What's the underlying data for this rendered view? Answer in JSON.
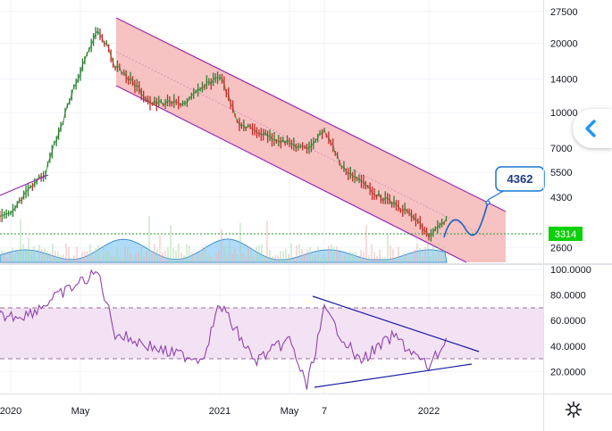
{
  "chart_data": [
    {
      "type": "line",
      "subtype": "candlestick-with-volume",
      "yscale": "log",
      "y_ticks": [
        "27500",
        "20000",
        "14000",
        "10000",
        "7000",
        "5500",
        "4300",
        "2600"
      ],
      "x_ticks": [
        "2020",
        "May",
        "2021",
        "May",
        "7",
        "2022"
      ],
      "last_price_label": "3314",
      "projection_label": "4362",
      "series": [
        {
          "values": [
            {
              "x": "2019-10",
              "y": 3200
            },
            {
              "x": "2020-01",
              "y": 3600
            },
            {
              "x": "2020-03",
              "y": 5500
            },
            {
              "x": "2020-04",
              "y": 9000
            },
            {
              "x": "2020-05",
              "y": 15000
            },
            {
              "x": "2020-06",
              "y": 23000
            },
            {
              "x": "2020-07",
              "y": 16000
            },
            {
              "x": "2020-09",
              "y": 11000
            },
            {
              "x": "2020-11",
              "y": 11000
            },
            {
              "x": "2021-01",
              "y": 14500
            },
            {
              "x": "2021-02",
              "y": 9000
            },
            {
              "x": "2021-04",
              "y": 7800
            },
            {
              "x": "2021-06",
              "y": 6900
            },
            {
              "x": "2021-07",
              "y": 8400
            },
            {
              "x": "2021-08",
              "y": 5800
            },
            {
              "x": "2021-10",
              "y": 4400
            },
            {
              "x": "2021-12",
              "y": 3600
            },
            {
              "x": "2022-01",
              "y": 2900
            },
            {
              "x": "2022-02",
              "y": 3400
            }
          ]
        }
      ],
      "channel": {
        "color": "#f4b3b3",
        "border": "#9c27b0"
      },
      "price_line_color": "#4caf50",
      "volume_color": "#7cc3f2"
    },
    {
      "type": "line",
      "indicator": "RSI",
      "y_ticks": [
        "100.0000",
        "80.0000",
        "60.0000",
        "40.0000",
        "20.0000"
      ],
      "band": [
        30,
        70
      ],
      "band_color": "#f3e4f3",
      "line_color": "#8e44ad",
      "series": [
        {
          "values": [
            {
              "x": "2019-10",
              "y": 60
            },
            {
              "x": "2020-02",
              "y": 65
            },
            {
              "x": "2020-05",
              "y": 90
            },
            {
              "x": "2020-06",
              "y": 98
            },
            {
              "x": "2020-07",
              "y": 50
            },
            {
              "x": "2020-10",
              "y": 35
            },
            {
              "x": "2020-12",
              "y": 30
            },
            {
              "x": "2021-01",
              "y": 73
            },
            {
              "x": "2021-03",
              "y": 28
            },
            {
              "x": "2021-05",
              "y": 45
            },
            {
              "x": "2021-06",
              "y": 8
            },
            {
              "x": "2021-07",
              "y": 68
            },
            {
              "x": "2021-09",
              "y": 28
            },
            {
              "x": "2021-11",
              "y": 48
            },
            {
              "x": "2022-01",
              "y": 23
            },
            {
              "x": "2022-02",
              "y": 45
            }
          ]
        }
      ]
    }
  ]
}
